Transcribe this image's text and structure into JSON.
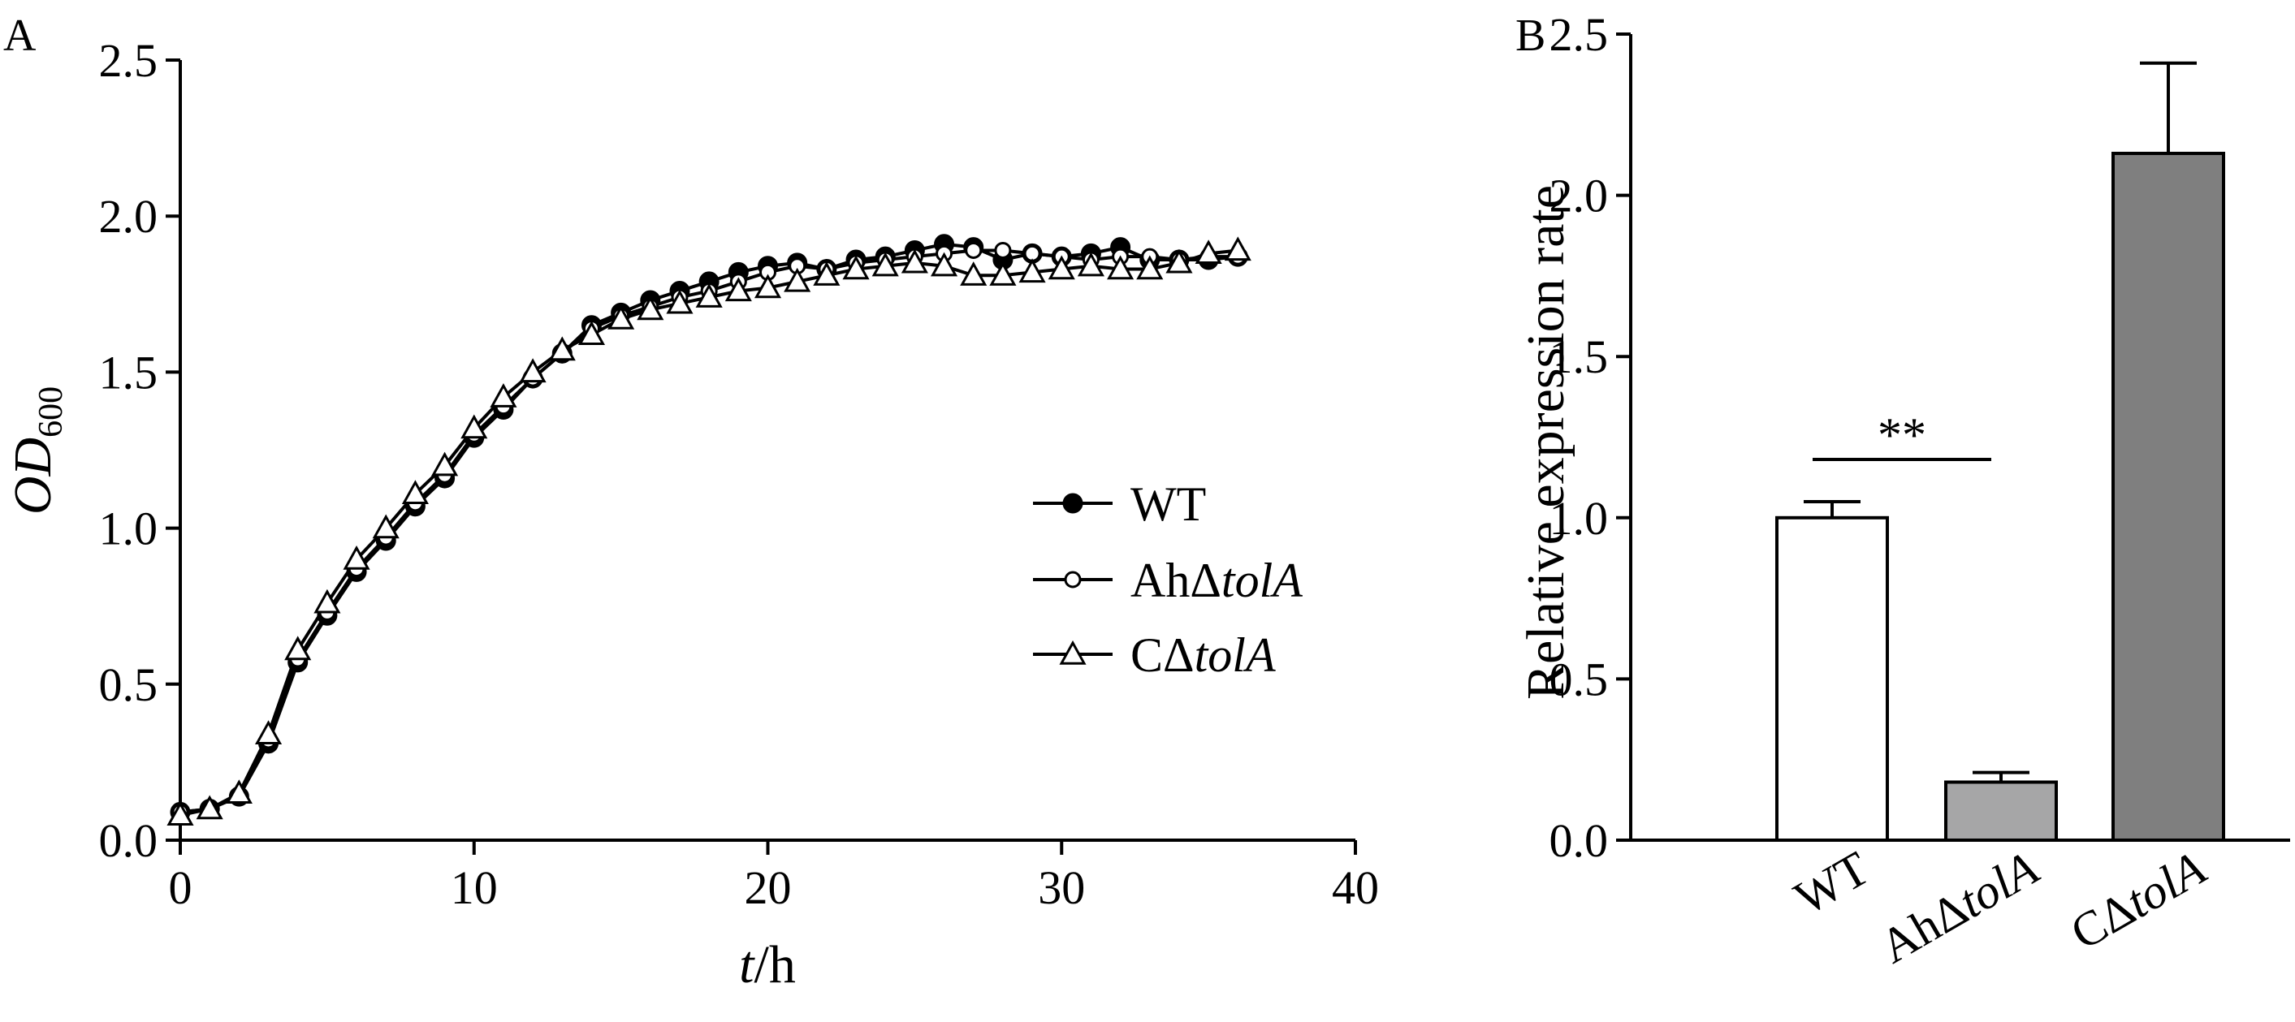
{
  "panels": [
    {
      "letter": "A",
      "chart_data": {
        "type": "line",
        "xlabel_italic": "t",
        "xlabel_unit": "/h",
        "ylabel_main": "OD",
        "ylabel_sub": "600",
        "xlim": [
          0,
          40
        ],
        "ylim": [
          0.0,
          2.5
        ],
        "xticks": [
          "0",
          "10",
          "20",
          "30",
          "40"
        ],
        "yticks": [
          "0.0",
          "0.5",
          "1.0",
          "1.5",
          "2.0",
          "2.5"
        ],
        "legend_position": "center-right",
        "x": [
          0,
          1,
          2,
          3,
          4,
          5,
          6,
          7,
          8,
          9,
          10,
          11,
          12,
          13,
          14,
          15,
          16,
          17,
          18,
          19,
          20,
          21,
          22,
          23,
          24,
          25,
          26,
          27,
          28,
          29,
          30,
          31,
          32,
          33,
          34,
          35,
          36
        ],
        "series": [
          {
            "name": "WT",
            "marker": "filled-circle",
            "values": [
              0.09,
              0.1,
              0.14,
              0.31,
              0.57,
              0.72,
              0.86,
              0.96,
              1.07,
              1.16,
              1.29,
              1.38,
              1.48,
              1.56,
              1.65,
              1.69,
              1.73,
              1.76,
              1.79,
              1.82,
              1.84,
              1.85,
              1.83,
              1.86,
              1.87,
              1.89,
              1.91,
              1.9,
              1.86,
              1.88,
              1.87,
              1.88,
              1.9,
              1.86,
              1.86,
              1.86,
              1.87
            ]
          },
          {
            "name_prefix": "AhΔ",
            "name_italic": "tolA",
            "marker": "open-circle",
            "values": [
              0.09,
              0.1,
              0.14,
              0.32,
              0.58,
              0.73,
              0.87,
              0.97,
              1.08,
              1.17,
              1.3,
              1.39,
              1.48,
              1.56,
              1.64,
              1.68,
              1.71,
              1.74,
              1.76,
              1.79,
              1.82,
              1.84,
              1.83,
              1.85,
              1.86,
              1.87,
              1.88,
              1.89,
              1.89,
              1.88,
              1.87,
              1.86,
              1.87,
              1.87,
              1.86,
              1.87,
              1.87
            ]
          },
          {
            "name_prefix": "CΔ",
            "name_italic": "tolA",
            "marker": "open-triangle",
            "values": [
              0.08,
              0.1,
              0.15,
              0.34,
              0.61,
              0.76,
              0.9,
              1.0,
              1.11,
              1.2,
              1.32,
              1.42,
              1.5,
              1.57,
              1.62,
              1.67,
              1.7,
              1.72,
              1.74,
              1.76,
              1.77,
              1.79,
              1.81,
              1.83,
              1.84,
              1.85,
              1.84,
              1.81,
              1.81,
              1.82,
              1.83,
              1.84,
              1.83,
              1.83,
              1.85,
              1.88,
              1.89
            ]
          }
        ]
      }
    },
    {
      "letter": "B",
      "chart_data": {
        "type": "bar",
        "ylabel": "Relative expression rate",
        "ylim": [
          0.0,
          2.5
        ],
        "yticks": [
          "0.0",
          "0.5",
          "1.0",
          "1.5",
          "2.0",
          "2.5"
        ],
        "categories": [
          {
            "prefix": "WT",
            "italic": ""
          },
          {
            "prefix": "AhΔ",
            "italic": "tolA"
          },
          {
            "prefix": "CΔ",
            "italic": "tolA"
          }
        ],
        "values": [
          1.0,
          0.18,
          2.13
        ],
        "error": [
          0.05,
          0.03,
          0.28
        ],
        "bar_colors": [
          "#ffffff",
          "#a6a6a7",
          "#7f7f7f"
        ],
        "significance": "**"
      }
    }
  ]
}
